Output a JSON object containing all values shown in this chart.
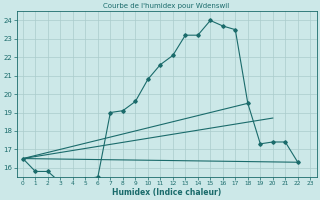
{
  "title": "Courbe de l'humidex pour Wdenswil",
  "xlabel": "Humidex (Indice chaleur)",
  "xlim": [
    -0.5,
    23.5
  ],
  "ylim": [
    15.5,
    24.5
  ],
  "yticks": [
    16,
    17,
    18,
    19,
    20,
    21,
    22,
    23,
    24
  ],
  "xticks": [
    0,
    1,
    2,
    3,
    4,
    5,
    6,
    7,
    8,
    9,
    10,
    11,
    12,
    13,
    14,
    15,
    16,
    17,
    18,
    19,
    20,
    21,
    22,
    23
  ],
  "bg_color": "#cce8e8",
  "grid_color": "#aacccc",
  "line_color": "#1a6b6b",
  "line1_x": [
    0,
    1,
    2,
    3,
    4,
    5,
    6,
    7,
    8,
    9,
    10,
    11,
    12,
    13,
    14,
    15,
    16,
    17,
    18,
    19,
    20,
    21,
    22
  ],
  "line1_y": [
    16.5,
    15.8,
    15.8,
    15.2,
    15.3,
    15.4,
    15.5,
    19.0,
    19.1,
    19.6,
    20.8,
    21.6,
    22.1,
    23.2,
    23.2,
    24.0,
    23.7,
    23.5,
    19.5,
    17.3,
    17.4,
    17.4,
    16.3
  ],
  "line2_x": [
    0,
    22
  ],
  "line2_y": [
    16.5,
    16.3
  ],
  "line3_x": [
    0,
    20
  ],
  "line3_y": [
    16.5,
    18.7
  ],
  "line4_x": [
    0,
    18
  ],
  "line4_y": [
    16.5,
    19.5
  ]
}
